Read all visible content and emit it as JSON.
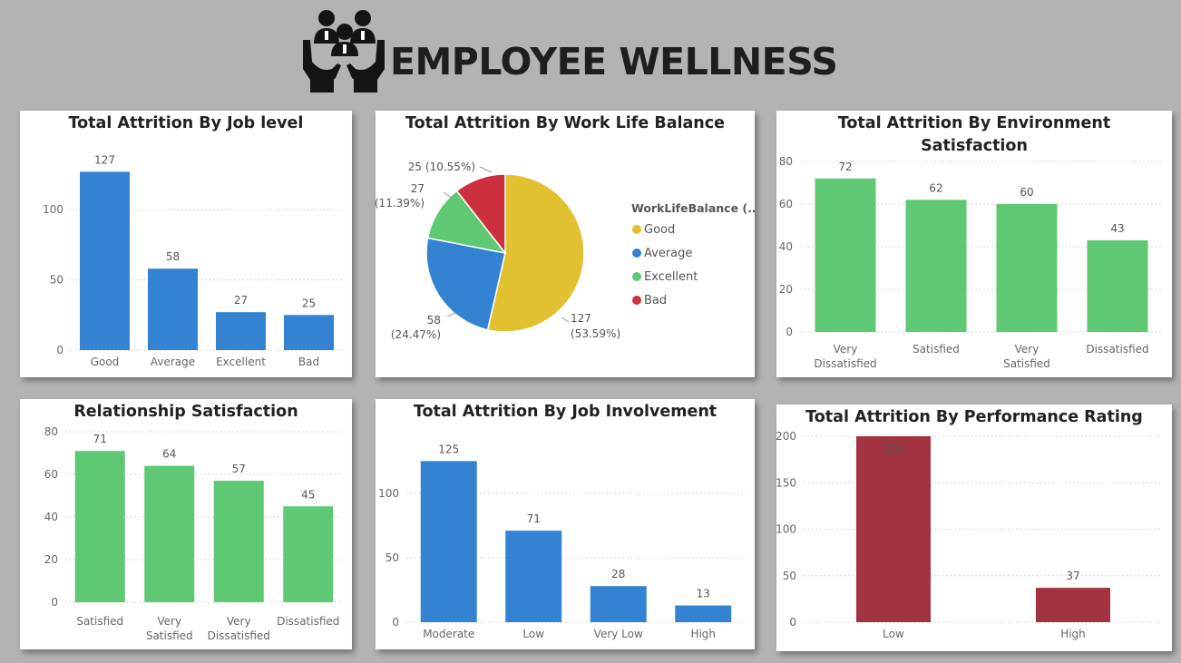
{
  "header": {
    "title": "EMPLOYEE WELLNESS",
    "logo_icon": "people-care-hands-icon"
  },
  "colors": {
    "blue": "#3483d2",
    "green": "#5ec873",
    "red": "#a33340",
    "yellow": "#e2c130",
    "pie_red": "#cc2f3d"
  },
  "chart_data": [
    {
      "id": "job_level",
      "type": "bar",
      "title": "Total Attrition By Job level",
      "categories": [
        "Good",
        "Average",
        "Excellent",
        "Bad"
      ],
      "values": [
        127,
        58,
        27,
        25
      ],
      "ylim": [
        0,
        135
      ],
      "yticks": [
        0,
        50,
        100
      ],
      "color": "#3483d2",
      "grid": true
    },
    {
      "id": "work_life_balance",
      "type": "pie",
      "title": "Total Attrition By Work Life Balance",
      "legend_title": "WorkLifeBalance (...",
      "slices": [
        {
          "name": "Good",
          "value": 127,
          "percent": "53.59%",
          "color": "#e2c130"
        },
        {
          "name": "Average",
          "value": 58,
          "percent": "24.47%",
          "color": "#3483d2"
        },
        {
          "name": "Excellent",
          "value": 27,
          "percent": "11.39%",
          "color": "#5ec873"
        },
        {
          "name": "Bad",
          "value": 25,
          "percent": "10.55%",
          "color": "#cc2f3d"
        }
      ],
      "legend_position": "right"
    },
    {
      "id": "environment_satisfaction",
      "type": "bar",
      "title": "Total Attrition By Environment Satisfaction",
      "categories": [
        "Very Dissatisfied",
        "Satisfied",
        "Very Satisfied",
        "Dissatisfied"
      ],
      "values": [
        72,
        62,
        60,
        43
      ],
      "ylim": [
        0,
        80
      ],
      "yticks": [
        0,
        20,
        40,
        60,
        80
      ],
      "color": "#5ec873",
      "grid": true
    },
    {
      "id": "relationship_satisfaction",
      "type": "bar",
      "title": "Relationship Satisfaction",
      "categories": [
        "Satisfied",
        "Very Satisfied",
        "Very Dissatisfied",
        "Dissatisfied"
      ],
      "values": [
        71,
        64,
        57,
        45
      ],
      "ylim": [
        0,
        80
      ],
      "yticks": [
        0,
        20,
        40,
        60,
        80
      ],
      "color": "#5ec873",
      "grid": true
    },
    {
      "id": "job_involvement",
      "type": "bar",
      "title": "Total Attrition By Job Involvement",
      "categories": [
        "Moderate",
        "Low",
        "Very Low",
        "High"
      ],
      "values": [
        125,
        71,
        28,
        13
      ],
      "ylim": [
        0,
        133
      ],
      "yticks": [
        0,
        50,
        100
      ],
      "color": "#3483d2",
      "grid": true
    },
    {
      "id": "performance_rating",
      "type": "bar",
      "title": "Total Attrition By Performance Rating",
      "categories": [
        "Low",
        "High"
      ],
      "values": [
        200,
        37
      ],
      "ylim": [
        0,
        200
      ],
      "yticks": [
        0,
        50,
        100,
        150,
        200
      ],
      "color": "#a33340",
      "grid": true,
      "label_inside_first": true
    }
  ]
}
